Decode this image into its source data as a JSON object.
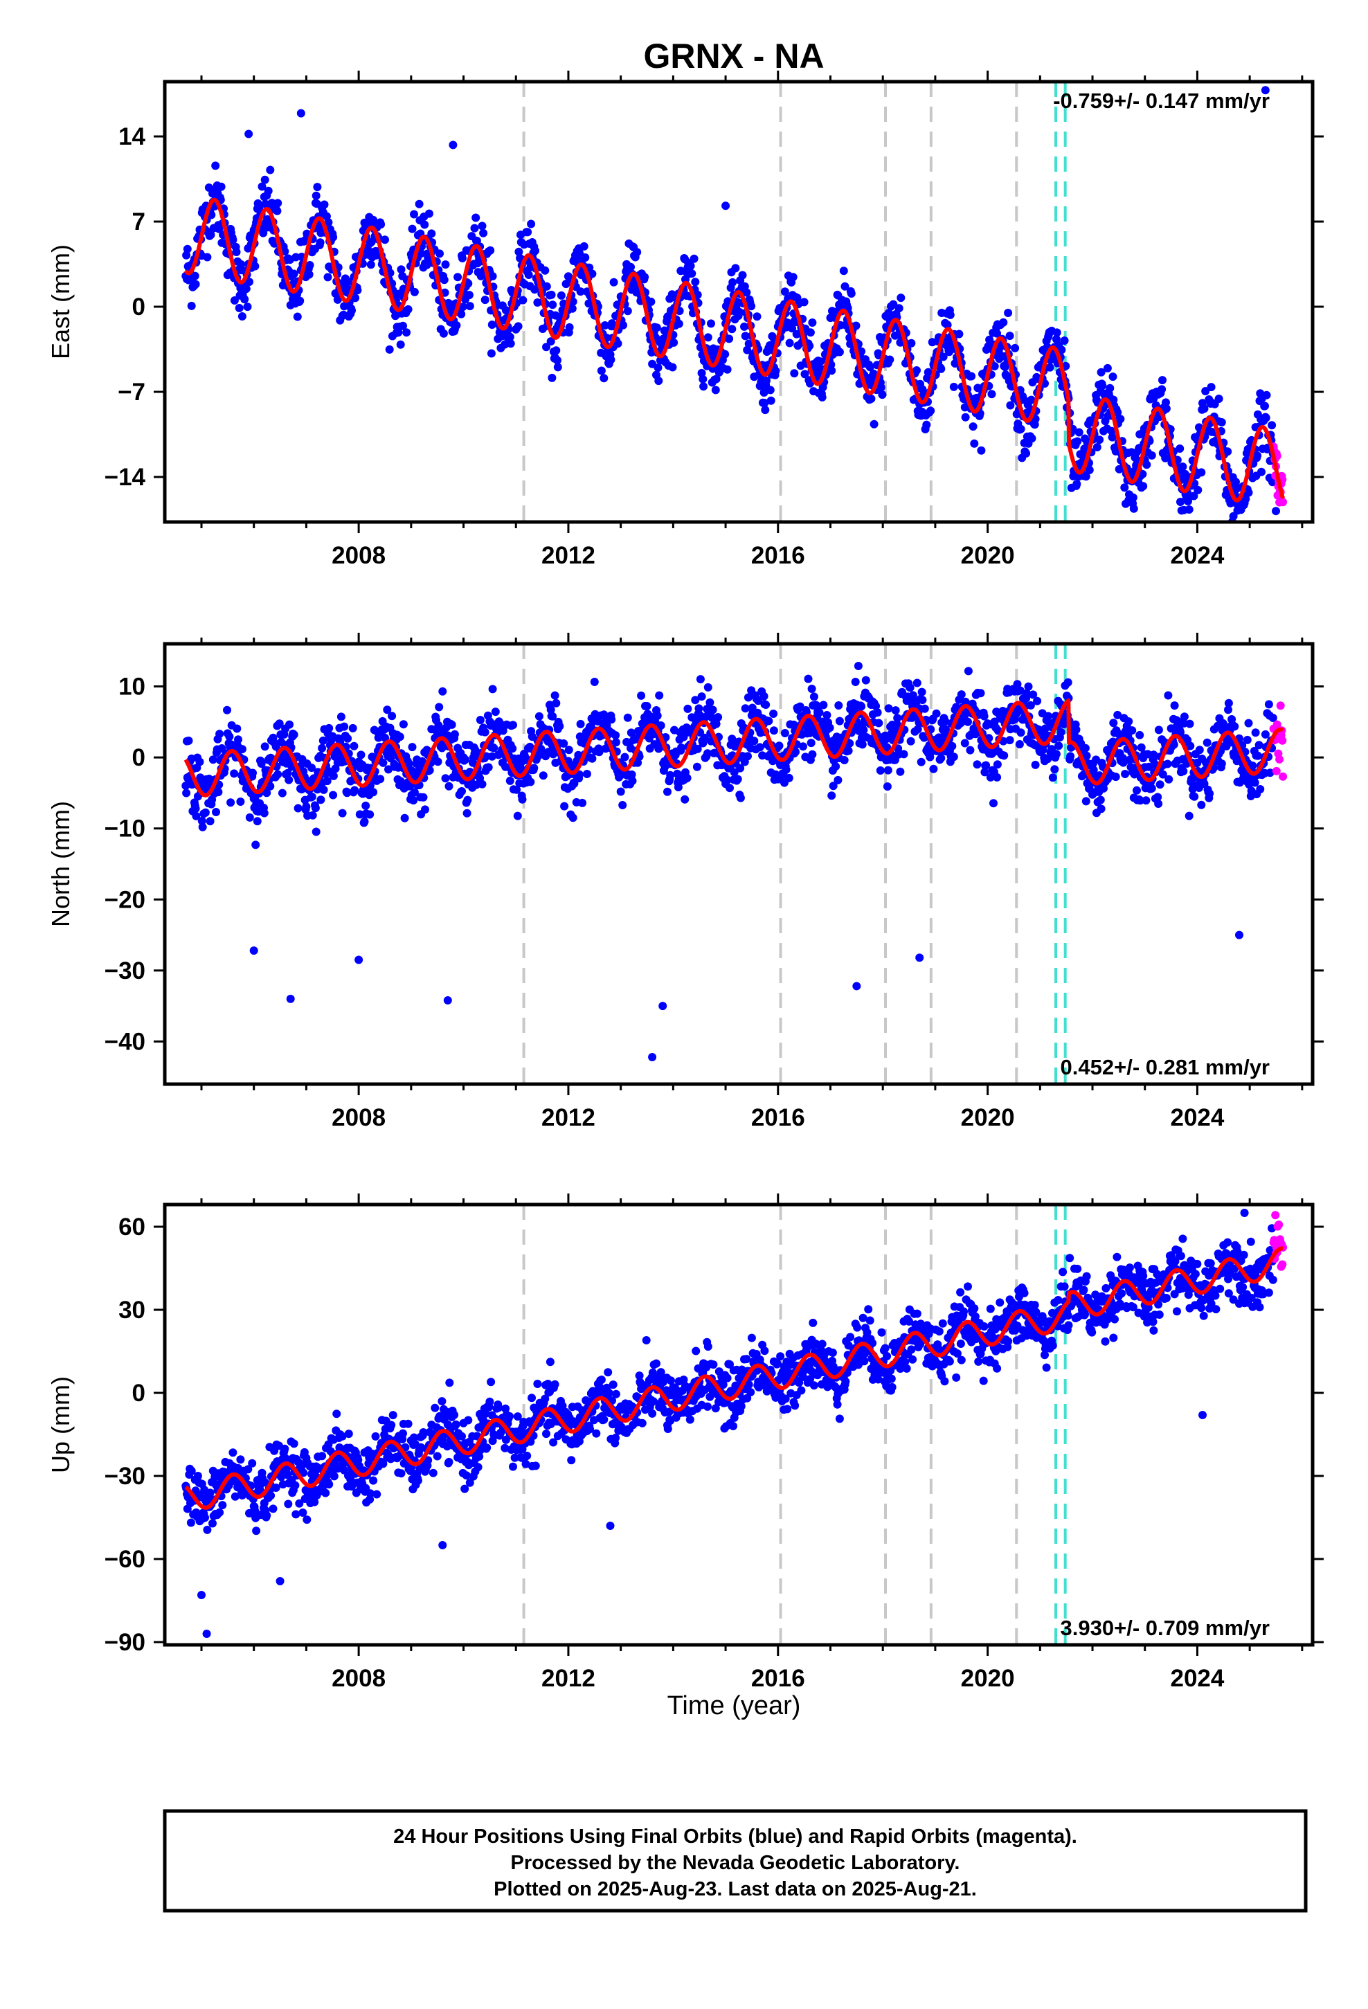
{
  "title": "GRNX - NA",
  "xlabel": "Time (year)",
  "xticks": [
    2008,
    2012,
    2016,
    2020,
    2024
  ],
  "xlim": [
    2004.3,
    2026.2
  ],
  "colors": {
    "final": "#0000ff",
    "rapid": "#ff00ff",
    "model": "#ff0000",
    "equipment_change": "#c8c8c8",
    "earthquake": "#40e0d0"
  },
  "caption": {
    "line1": "24 Hour Positions Using Final Orbits (blue) and Rapid Orbits (magenta).",
    "line2": "Processed by the Nevada Geodetic Laboratory.",
    "line3": "Plotted on 2025-Aug-23. Last data on 2025-Aug-21."
  },
  "chart_data": [
    {
      "type": "scatter",
      "component": "east",
      "ylabel": "East (mm)",
      "ylim": [
        -17.7,
        18.5
      ],
      "yticks": [
        -14,
        -7,
        0,
        7,
        14
      ],
      "rate_text": "-0.759+/- 0.147 mm/yr",
      "rate_position": "top-right",
      "data_start": 2004.7,
      "data_end": 2025.64,
      "rapid_start": 2025.45,
      "trend": {
        "value_at_start": 6.0,
        "slope_mm_per_yr": -0.759
      },
      "seasonal": {
        "amplitude": 3.2,
        "peak_phase": 0.25
      },
      "scatter_sd": 1.4,
      "outliers": [
        [
          2005.9,
          14.2
        ],
        [
          2006.9,
          15.9
        ],
        [
          2009.8,
          13.3
        ],
        [
          2015.0,
          8.3
        ],
        [
          2025.3,
          17.8
        ],
        [
          2025.5,
          -16.8
        ]
      ],
      "offsets": [
        [
          2021.55,
          -3.5
        ]
      ],
      "equipment_changes": [
        2011.15,
        2016.05,
        2018.05,
        2018.92,
        2020.55
      ],
      "earthquakes": [
        2021.3,
        2021.48
      ]
    },
    {
      "type": "scatter",
      "component": "north",
      "ylabel": "North (mm)",
      "ylim": [
        -46,
        16
      ],
      "yticks": [
        -40,
        -30,
        -20,
        -10,
        0,
        10
      ],
      "rate_text": "0.452+/- 0.281 mm/yr",
      "rate_position": "bottom-right",
      "data_start": 2004.7,
      "data_end": 2025.64,
      "rapid_start": 2025.45,
      "trend": {
        "value_at_start": -2.5,
        "slope_mm_per_yr": 0.452
      },
      "seasonal": {
        "amplitude": 3.0,
        "peak_phase": 0.58
      },
      "scatter_sd": 2.4,
      "outliers": [
        [
          2006.0,
          -27.2
        ],
        [
          2006.7,
          -34.0
        ],
        [
          2008.0,
          -28.5
        ],
        [
          2009.7,
          -34.2
        ],
        [
          2013.6,
          -42.2
        ],
        [
          2013.8,
          -35.0
        ],
        [
          2017.5,
          -32.2
        ],
        [
          2018.7,
          -28.2
        ],
        [
          2024.8,
          -25.0
        ]
      ],
      "offsets": [
        [
          2021.55,
          -6.0
        ]
      ],
      "equipment_changes": [
        2011.15,
        2016.05,
        2018.05,
        2018.92,
        2020.55
      ],
      "earthquakes": [
        2021.3,
        2021.48
      ]
    },
    {
      "type": "scatter",
      "component": "up",
      "ylabel": "Up (mm)",
      "ylim": [
        -91,
        68
      ],
      "yticks": [
        -90,
        -60,
        -30,
        0,
        30,
        60
      ],
      "rate_text": "3.930+/- 0.709 mm/yr",
      "rate_position": "bottom-right",
      "data_start": 2004.7,
      "data_end": 2025.64,
      "rapid_start": 2025.45,
      "trend": {
        "value_at_start": -38.0,
        "slope_mm_per_yr": 3.93
      },
      "seasonal": {
        "amplitude": 5.0,
        "peak_phase": 0.6
      },
      "scatter_sd": 5.2,
      "outliers": [
        [
          2005.0,
          -73.0
        ],
        [
          2005.1,
          -87.0
        ],
        [
          2006.5,
          -68.0
        ],
        [
          2009.6,
          -55.0
        ],
        [
          2012.8,
          -48.0
        ],
        [
          2024.1,
          -8.0
        ],
        [
          2024.9,
          65.0
        ]
      ],
      "offsets": [
        [
          2021.55,
          3.0
        ]
      ],
      "equipment_changes": [
        2011.15,
        2016.05,
        2018.05,
        2018.92,
        2020.55
      ],
      "earthquakes": [
        2021.3,
        2021.48
      ]
    }
  ]
}
